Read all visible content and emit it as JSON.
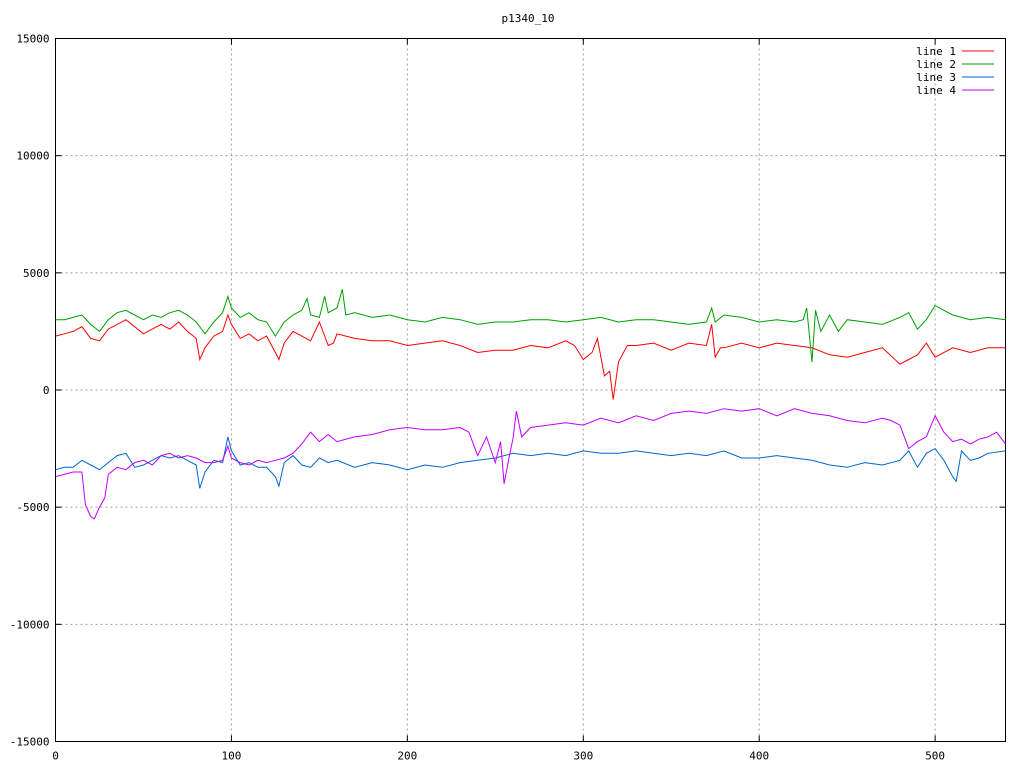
{
  "chart_data": {
    "type": "line",
    "title": "p1340_10",
    "xlim": [
      0,
      540
    ],
    "ylim": [
      -15000,
      15000
    ],
    "x_ticks": [
      0,
      100,
      200,
      300,
      400,
      500
    ],
    "y_ticks": [
      -15000,
      -10000,
      -5000,
      0,
      5000,
      10000,
      15000
    ],
    "grid": true,
    "legend_position": "top-right",
    "series": [
      {
        "name": "line 1",
        "color": "#ff0000",
        "x": [
          0,
          5,
          10,
          15,
          20,
          25,
          30,
          35,
          40,
          45,
          50,
          55,
          60,
          65,
          70,
          75,
          80,
          82,
          85,
          90,
          95,
          98,
          100,
          105,
          110,
          115,
          120,
          125,
          127,
          130,
          135,
          140,
          145,
          150,
          155,
          158,
          160,
          165,
          170,
          180,
          190,
          200,
          210,
          220,
          230,
          240,
          250,
          260,
          270,
          280,
          290,
          295,
          300,
          305,
          308,
          312,
          315,
          317,
          320,
          325,
          330,
          340,
          350,
          360,
          370,
          373,
          375,
          378,
          380,
          390,
          400,
          410,
          420,
          430,
          440,
          450,
          460,
          470,
          480,
          485,
          490,
          495,
          500,
          510,
          520,
          530,
          540
        ],
        "y": [
          2300,
          2400,
          2500,
          2700,
          2200,
          2100,
          2600,
          2800,
          3000,
          2700,
          2400,
          2600,
          2800,
          2600,
          2900,
          2500,
          2200,
          1300,
          1800,
          2300,
          2500,
          3200,
          2800,
          2200,
          2400,
          2100,
          2300,
          1600,
          1300,
          2000,
          2500,
          2300,
          2100,
          2900,
          1900,
          2000,
          2400,
          2300,
          2200,
          2100,
          2100,
          1900,
          2000,
          2100,
          1900,
          1600,
          1700,
          1700,
          1900,
          1800,
          2100,
          1900,
          1300,
          1600,
          2200,
          600,
          800,
          -400,
          1200,
          1900,
          1900,
          2000,
          1700,
          2000,
          1900,
          2800,
          1400,
          1800,
          1800,
          2000,
          1800,
          2000,
          1900,
          1800,
          1500,
          1400,
          1600,
          1800,
          1100,
          1300,
          1500,
          2000,
          1400,
          1800,
          1600,
          1800,
          1800
        ]
      },
      {
        "name": "line 2",
        "color": "#00a000",
        "x": [
          0,
          5,
          10,
          15,
          20,
          25,
          30,
          35,
          40,
          45,
          50,
          55,
          60,
          65,
          70,
          75,
          80,
          85,
          90,
          95,
          98,
          100,
          105,
          110,
          115,
          120,
          125,
          130,
          135,
          140,
          143,
          145,
          150,
          153,
          155,
          160,
          163,
          165,
          170,
          180,
          190,
          200,
          210,
          220,
          230,
          240,
          250,
          260,
          270,
          280,
          290,
          300,
          310,
          320,
          330,
          340,
          350,
          360,
          370,
          373,
          375,
          380,
          390,
          400,
          410,
          420,
          425,
          427,
          430,
          432,
          435,
          440,
          445,
          450,
          460,
          470,
          480,
          485,
          490,
          495,
          500,
          510,
          520,
          530,
          540
        ],
        "y": [
          3000,
          3000,
          3100,
          3200,
          2800,
          2500,
          3000,
          3300,
          3400,
          3200,
          3000,
          3200,
          3100,
          3300,
          3400,
          3200,
          2900,
          2400,
          2900,
          3300,
          4000,
          3500,
          3100,
          3300,
          3000,
          2900,
          2300,
          2900,
          3200,
          3400,
          3900,
          3200,
          3100,
          4000,
          3300,
          3500,
          4300,
          3200,
          3300,
          3100,
          3200,
          3000,
          2900,
          3100,
          3000,
          2800,
          2900,
          2900,
          3000,
          3000,
          2900,
          3000,
          3100,
          2900,
          3000,
          3000,
          2900,
          2800,
          2900,
          3500,
          2900,
          3200,
          3100,
          2900,
          3000,
          2900,
          3000,
          3500,
          1200,
          3400,
          2500,
          3200,
          2500,
          3000,
          2900,
          2800,
          3100,
          3300,
          2600,
          3000,
          3600,
          3200,
          3000,
          3100,
          3000
        ]
      },
      {
        "name": "line 3",
        "color": "#0066cc",
        "x": [
          0,
          5,
          10,
          15,
          20,
          25,
          30,
          35,
          40,
          45,
          50,
          55,
          60,
          65,
          70,
          75,
          80,
          82,
          85,
          90,
          95,
          98,
          100,
          105,
          110,
          115,
          120,
          125,
          127,
          130,
          135,
          140,
          145,
          150,
          155,
          160,
          170,
          180,
          190,
          200,
          210,
          220,
          230,
          240,
          250,
          260,
          270,
          280,
          290,
          300,
          310,
          320,
          330,
          340,
          350,
          360,
          370,
          380,
          390,
          400,
          410,
          420,
          430,
          440,
          450,
          460,
          470,
          480,
          485,
          490,
          495,
          500,
          505,
          510,
          512,
          515,
          520,
          525,
          530,
          540
        ],
        "y": [
          -3400,
          -3300,
          -3300,
          -3000,
          -3200,
          -3400,
          -3100,
          -2800,
          -2700,
          -3300,
          -3200,
          -3000,
          -2800,
          -2900,
          -2800,
          -3000,
          -3200,
          -4200,
          -3500,
          -3000,
          -3100,
          -2000,
          -2600,
          -3200,
          -3100,
          -3300,
          -3300,
          -3700,
          -4100,
          -3100,
          -2800,
          -3200,
          -3300,
          -2900,
          -3100,
          -3000,
          -3300,
          -3100,
          -3200,
          -3400,
          -3200,
          -3300,
          -3100,
          -3000,
          -2900,
          -2700,
          -2800,
          -2700,
          -2800,
          -2600,
          -2700,
          -2700,
          -2600,
          -2700,
          -2800,
          -2700,
          -2800,
          -2600,
          -2900,
          -2900,
          -2800,
          -2900,
          -3000,
          -3200,
          -3300,
          -3100,
          -3200,
          -3000,
          -2600,
          -3300,
          -2700,
          -2500,
          -3000,
          -3700,
          -3900,
          -2600,
          -3000,
          -2900,
          -2700,
          -2600
        ]
      },
      {
        "name": "line 4",
        "color": "#c000ff",
        "x": [
          0,
          5,
          10,
          15,
          17,
          20,
          22,
          25,
          28,
          30,
          35,
          40,
          45,
          50,
          55,
          60,
          65,
          70,
          75,
          80,
          85,
          90,
          95,
          98,
          100,
          105,
          110,
          115,
          120,
          125,
          130,
          135,
          140,
          145,
          150,
          155,
          160,
          170,
          180,
          190,
          200,
          210,
          220,
          230,
          235,
          240,
          245,
          250,
          253,
          255,
          258,
          260,
          262,
          265,
          270,
          280,
          290,
          300,
          310,
          320,
          330,
          340,
          350,
          360,
          370,
          380,
          390,
          400,
          410,
          420,
          430,
          440,
          450,
          460,
          470,
          475,
          480,
          485,
          490,
          495,
          500,
          505,
          510,
          515,
          520,
          525,
          530,
          535,
          540
        ],
        "y": [
          -3700,
          -3600,
          -3500,
          -3500,
          -4900,
          -5400,
          -5500,
          -5000,
          -4600,
          -3600,
          -3300,
          -3400,
          -3100,
          -3000,
          -3200,
          -2800,
          -2700,
          -2900,
          -2800,
          -2900,
          -3100,
          -3100,
          -3000,
          -2400,
          -2900,
          -3100,
          -3200,
          -3000,
          -3100,
          -3000,
          -2900,
          -2700,
          -2300,
          -1800,
          -2200,
          -1900,
          -2200,
          -2000,
          -1900,
          -1700,
          -1600,
          -1700,
          -1700,
          -1600,
          -1800,
          -2800,
          -2000,
          -3100,
          -2200,
          -4000,
          -2800,
          -2100,
          -900,
          -2000,
          -1600,
          -1500,
          -1400,
          -1500,
          -1200,
          -1400,
          -1100,
          -1300,
          -1000,
          -900,
          -1000,
          -800,
          -900,
          -800,
          -1100,
          -800,
          -1000,
          -1100,
          -1300,
          -1400,
          -1200,
          -1300,
          -1500,
          -2500,
          -2200,
          -2000,
          -1100,
          -1800,
          -2200,
          -2100,
          -2300,
          -2100,
          -2000,
          -1800,
          -2300
        ]
      }
    ]
  }
}
